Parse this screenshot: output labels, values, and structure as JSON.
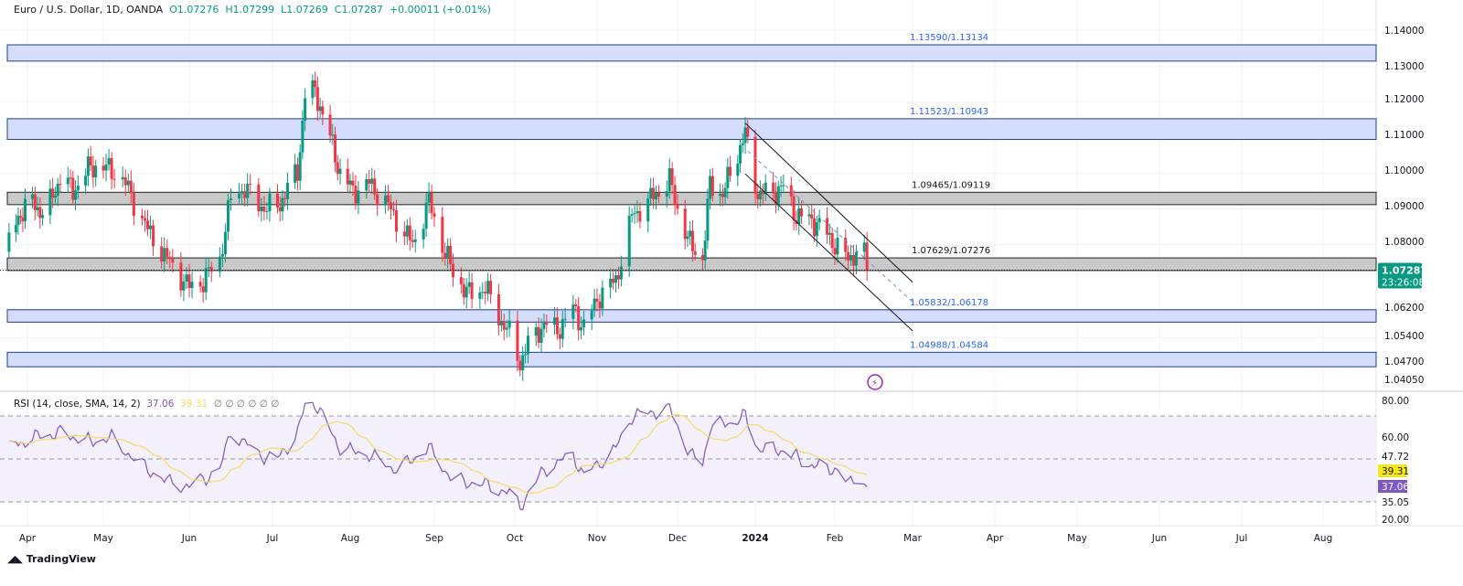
{
  "header": {
    "symbol": "Euro / U.S. Dollar, 1D, OANDA",
    "open": "O1.07276",
    "high": "H1.07299",
    "low": "L1.07269",
    "close": "C1.07287",
    "change": "+0.00011 (+0.01%)"
  },
  "rsi_header": {
    "label": "RSI (14, close, SMA, 14, 2)",
    "rsi": "37.06",
    "sma": "39.31",
    "extras": "∅ ∅ ∅ ∅ ∅ ∅"
  },
  "footer": {
    "brand": "TradingView"
  },
  "colors": {
    "up": "#089981",
    "down": "#f23645",
    "blue_zone": "#d4defc",
    "grey_zone": "#c9c9c9",
    "rsi": "#7e57c2",
    "rsi_sma": "#f2dc62",
    "price_tag": "#089981"
  },
  "chart_data": [
    {
      "type": "candlestick",
      "title": "Euro / U.S. Dollar, 1D, OANDA",
      "ylim": [
        1.0405,
        1.14
      ],
      "y_ticks": [
        "1.14000",
        "1.13000",
        "1.12000",
        "1.11000",
        "1.10000",
        "1.09000",
        "1.08000",
        "1.06200",
        "1.05400",
        "1.04700",
        "1.04050"
      ],
      "x_ticks": [
        "Apr",
        "May",
        "Jun",
        "Jul",
        "Aug",
        "Sep",
        "Oct",
        "Nov",
        "Dec",
        "2024",
        "Feb",
        "Mar",
        "Apr",
        "May",
        "Jun",
        "Jul",
        "Aug"
      ],
      "last_price": "1.07287",
      "countdown": "23:26:08",
      "close_path": [
        [
          "2023-03-24",
          1.08
        ],
        [
          "2023-03-28",
          1.088
        ],
        [
          "2023-04-03",
          1.092
        ],
        [
          "2023-04-08",
          1.088
        ],
        [
          "2023-04-14",
          1.099
        ],
        [
          "2023-04-19",
          1.095
        ],
        [
          "2023-04-26",
          1.102
        ],
        [
          "2023-05-04",
          1.101
        ],
        [
          "2023-05-09",
          1.097
        ],
        [
          "2023-05-12",
          1.092
        ],
        [
          "2023-05-17",
          1.084
        ],
        [
          "2023-05-23",
          1.077
        ],
        [
          "2023-05-29",
          1.071
        ],
        [
          "2023-06-01",
          1.068
        ],
        [
          "2023-06-06",
          1.07
        ],
        [
          "2023-06-12",
          1.076
        ],
        [
          "2023-06-16",
          1.093
        ],
        [
          "2023-06-21",
          1.096
        ],
        [
          "2023-06-26",
          1.091
        ],
        [
          "2023-07-03",
          1.09
        ],
        [
          "2023-07-07",
          1.096
        ],
        [
          "2023-07-11",
          1.1
        ],
        [
          "2023-07-14",
          1.122
        ],
        [
          "2023-07-18",
          1.123
        ],
        [
          "2023-07-24",
          1.11
        ],
        [
          "2023-07-28",
          1.1
        ],
        [
          "2023-08-02",
          1.095
        ],
        [
          "2023-08-08",
          1.097
        ],
        [
          "2023-08-14",
          1.092
        ],
        [
          "2023-08-18",
          1.087
        ],
        [
          "2023-08-24",
          1.08
        ],
        [
          "2023-08-30",
          1.092
        ],
        [
          "2023-09-04",
          1.08
        ],
        [
          "2023-09-08",
          1.072
        ],
        [
          "2023-09-14",
          1.066
        ],
        [
          "2023-09-20",
          1.068
        ],
        [
          "2023-09-25",
          1.06
        ],
        [
          "2023-09-29",
          1.055
        ],
        [
          "2023-10-03",
          1.047
        ],
        [
          "2023-10-06",
          1.052
        ],
        [
          "2023-10-12",
          1.058
        ],
        [
          "2023-10-17",
          1.056
        ],
        [
          "2023-10-23",
          1.062
        ],
        [
          "2023-10-27",
          1.057
        ],
        [
          "2023-11-02",
          1.066
        ],
        [
          "2023-11-08",
          1.07
        ],
        [
          "2023-11-14",
          1.088
        ],
        [
          "2023-11-20",
          1.092
        ],
        [
          "2023-11-28",
          1.098
        ],
        [
          "2023-12-01",
          1.09
        ],
        [
          "2023-12-06",
          1.08
        ],
        [
          "2023-12-11",
          1.076
        ],
        [
          "2023-12-14",
          1.097
        ],
        [
          "2023-12-19",
          1.094
        ],
        [
          "2023-12-22",
          1.1
        ],
        [
          "2023-12-28",
          1.111
        ],
        [
          "2024-01-02",
          1.094
        ],
        [
          "2024-01-08",
          1.095
        ],
        [
          "2024-01-12",
          1.096
        ],
        [
          "2024-01-17",
          1.088
        ],
        [
          "2024-01-23",
          1.087
        ],
        [
          "2024-01-29",
          1.083
        ],
        [
          "2024-02-02",
          1.079
        ],
        [
          "2024-02-06",
          1.076
        ],
        [
          "2024-02-09",
          1.078
        ],
        [
          "2024-02-12",
          1.077
        ],
        [
          "2024-02-13",
          1.07287
        ]
      ],
      "zones": [
        {
          "label": "1.13590/1.13134",
          "top": 1.1359,
          "bottom": 1.13134,
          "kind": "blue"
        },
        {
          "label": "1.11523/1.10943",
          "top": 1.11523,
          "bottom": 1.10943,
          "kind": "blue"
        },
        {
          "label": "1.09465/1.09119",
          "top": 1.09465,
          "bottom": 1.09119,
          "kind": "grey"
        },
        {
          "label": "1.07629/1.07276",
          "top": 1.07629,
          "bottom": 1.07276,
          "kind": "grey"
        },
        {
          "label": "1.05832/1.06178",
          "top": 1.06178,
          "bottom": 1.05832,
          "kind": "blue"
        },
        {
          "label": "1.04988/1.04584",
          "top": 1.04988,
          "bottom": 1.04584,
          "kind": "blue"
        }
      ],
      "trendlines": [
        {
          "from": [
            "2023-12-28",
            1.114
          ],
          "to": [
            "2024-03-01",
            1.0695
          ],
          "style": "solid"
        },
        {
          "from": [
            "2023-12-28",
            1.0998
          ],
          "to": [
            "2024-03-01",
            1.0559
          ],
          "style": "solid"
        },
        {
          "from": [
            "2023-12-29",
            1.1062
          ],
          "to": [
            "2024-03-01",
            1.064
          ],
          "style": "dashed"
        }
      ]
    },
    {
      "type": "line",
      "title": "RSI (14, close, SMA, 14, 2)",
      "ylim": [
        20,
        80
      ],
      "y_ticks": [
        "80.00",
        "60.00",
        "47.72",
        "39.31",
        "37.06",
        "35.05",
        "20.00"
      ],
      "bands": [
        70,
        50,
        30
      ],
      "series": [
        {
          "name": "RSI",
          "values_path": [
            [
              "2023-03-24",
              55
            ],
            [
              "2023-04-03",
              60
            ],
            [
              "2023-04-14",
              62
            ],
            [
              "2023-04-26",
              58
            ],
            [
              "2023-05-04",
              60
            ],
            [
              "2023-05-12",
              50
            ],
            [
              "2023-05-23",
              40
            ],
            [
              "2023-06-01",
              37
            ],
            [
              "2023-06-12",
              45
            ],
            [
              "2023-06-16",
              63
            ],
            [
              "2023-06-26",
              52
            ],
            [
              "2023-07-03",
              50
            ],
            [
              "2023-07-11",
              62
            ],
            [
              "2023-07-14",
              75
            ],
            [
              "2023-07-18",
              76
            ],
            [
              "2023-07-28",
              55
            ],
            [
              "2023-08-08",
              52
            ],
            [
              "2023-08-18",
              45
            ],
            [
              "2023-08-30",
              55
            ],
            [
              "2023-09-08",
              40
            ],
            [
              "2023-09-20",
              38
            ],
            [
              "2023-09-29",
              34
            ],
            [
              "2023-10-03",
              28
            ],
            [
              "2023-10-12",
              45
            ],
            [
              "2023-10-23",
              52
            ],
            [
              "2023-10-27",
              42
            ],
            [
              "2023-11-08",
              55
            ],
            [
              "2023-11-14",
              70
            ],
            [
              "2023-11-28",
              73
            ],
            [
              "2023-12-06",
              52
            ],
            [
              "2023-12-11",
              48
            ],
            [
              "2023-12-14",
              65
            ],
            [
              "2023-12-22",
              67
            ],
            [
              "2023-12-28",
              70
            ],
            [
              "2024-01-02",
              55
            ],
            [
              "2024-01-12",
              54
            ],
            [
              "2024-01-23",
              47
            ],
            [
              "2024-02-02",
              45
            ],
            [
              "2024-02-06",
              38
            ],
            [
              "2024-02-09",
              42
            ],
            [
              "2024-02-13",
              37.06
            ]
          ]
        }
      ]
    }
  ]
}
